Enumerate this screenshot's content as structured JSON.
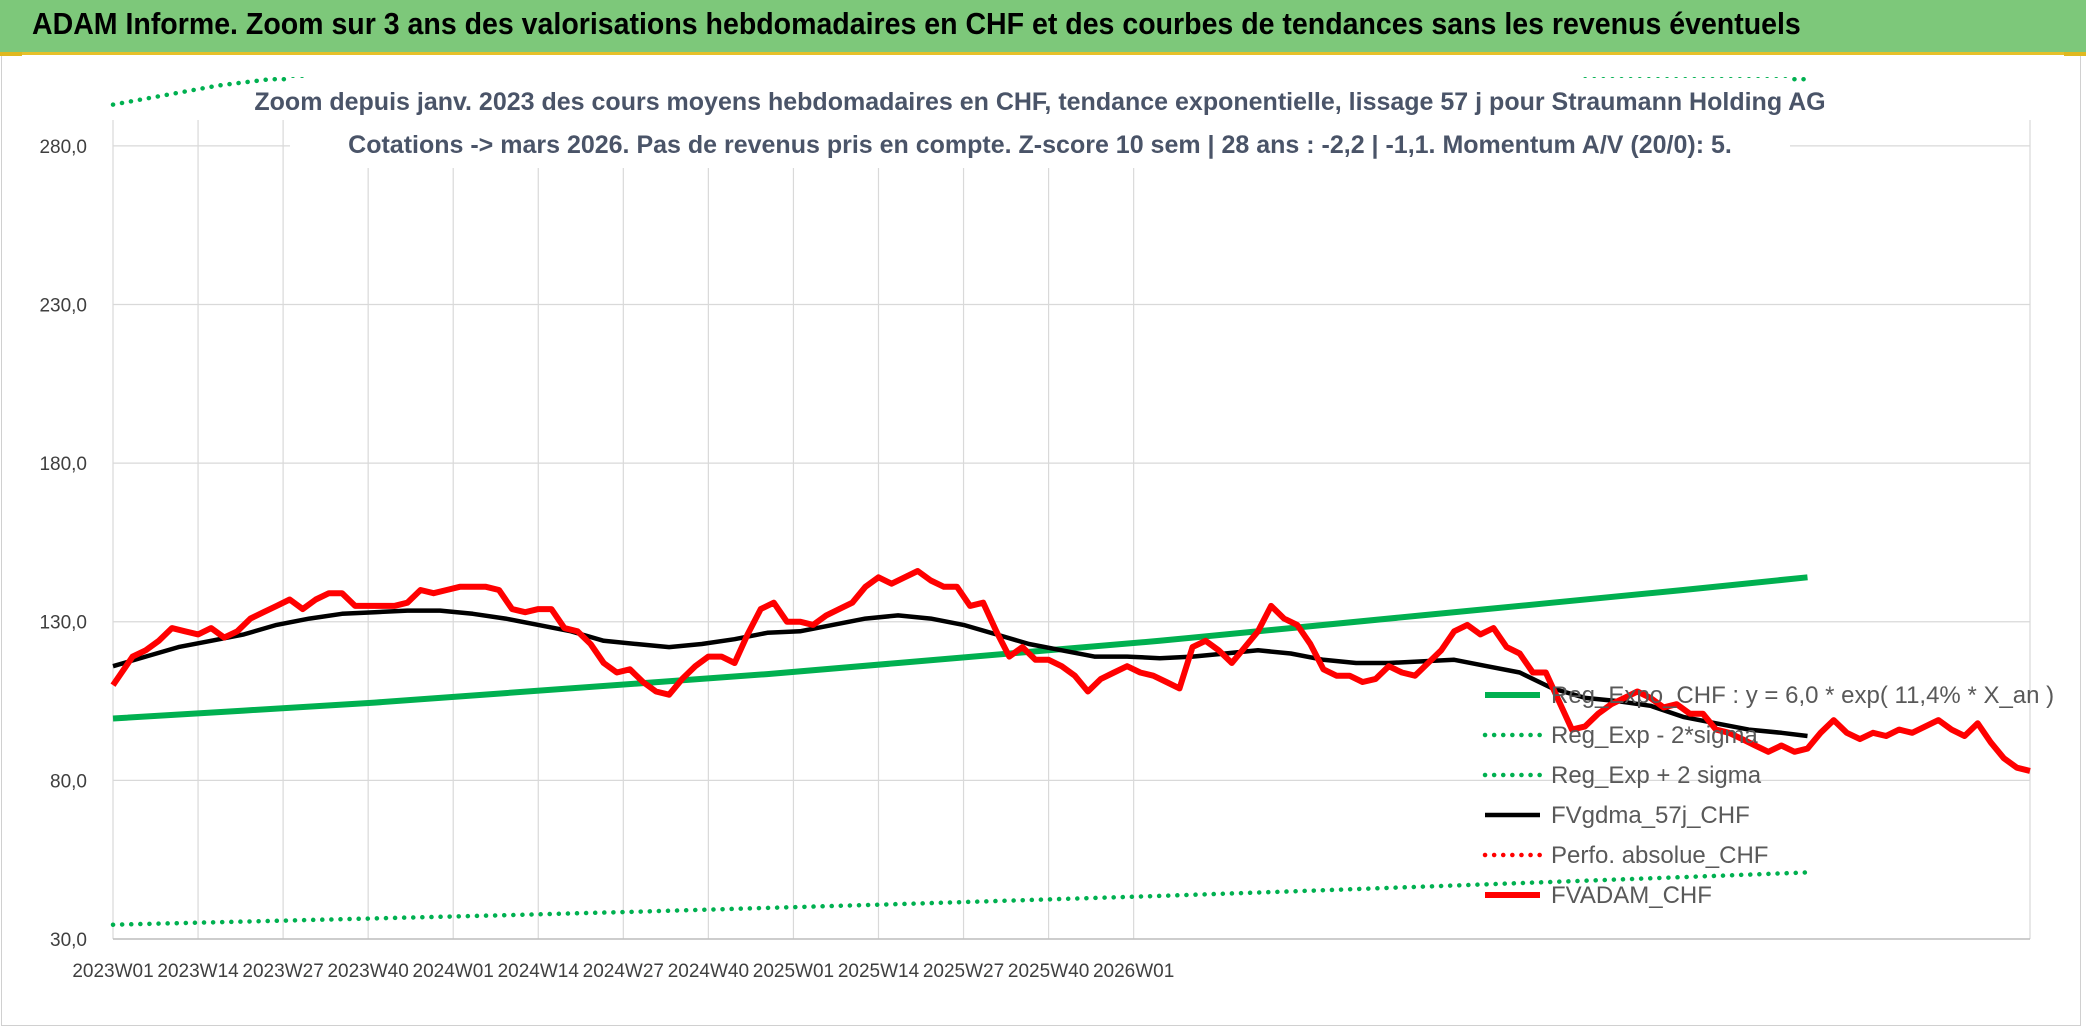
{
  "page": {
    "banner_title": "ADAM Informe. Zoom sur 3 ans des valorisations hebdomadaires en CHF et des courbes de tendances sans les revenus éventuels"
  },
  "colors": {
    "banner_bg": "#7dc87a",
    "trend_green": "#00b050",
    "price_red": "#ff0000",
    "gdma_black": "#000000"
  },
  "chart_data": {
    "type": "line",
    "title": "Zoom depuis janv. 2023 des cours moyens hebdomadaires en CHF, tendance exponentielle, lissage 57 j pour Straumann Holding AG",
    "subtitle": "Cotations -> mars 2026. Pas de revenus pris en compte. Z-score 10 sem | 28 ans : -2,2 | -1,1. Momentum A/V (20/0): 5.",
    "xlabel": "",
    "ylabel": "",
    "x_range": [
      "2023W01",
      "2026W12"
    ],
    "ylim": [
      30,
      285
    ],
    "y_ticks": [
      "30,0",
      "80,0",
      "130,0",
      "180,0",
      "230,0",
      "280,0"
    ],
    "x_ticks": [
      "2023W01",
      "2023W14",
      "2023W27",
      "2023W40",
      "2024W01",
      "2024W14",
      "2024W27",
      "2024W40",
      "2025W01",
      "2025W14",
      "2025W27",
      "2025W40",
      "2026W01"
    ],
    "grid": true,
    "legend_position": "right",
    "series": [
      {
        "name": "Reg_Expo_CHF : y = 6,0 * exp( 11,4% *  X_an )",
        "style": "solid-thick",
        "color": "#00b050",
        "points": [
          [
            0,
            99.5
          ],
          [
            20,
            102.0
          ],
          [
            40,
            104.5
          ],
          [
            60,
            107.5
          ],
          [
            80,
            110.5
          ],
          [
            100,
            113.5
          ],
          [
            120,
            117.0
          ],
          [
            140,
            120.5
          ],
          [
            160,
            124.0
          ],
          [
            180,
            128.0
          ],
          [
            200,
            132.0
          ],
          [
            220,
            136.0
          ],
          [
            240,
            140.0
          ],
          [
            259,
            144.0
          ]
        ]
      },
      {
        "name": "Reg_Exp - 2*sigma",
        "style": "dotted",
        "color": "#00b050",
        "points": [
          [
            0,
            34.5
          ],
          [
            20,
            35.5
          ],
          [
            40,
            36.5
          ],
          [
            60,
            37.5
          ],
          [
            80,
            38.6
          ],
          [
            100,
            39.8
          ],
          [
            120,
            41.0
          ],
          [
            140,
            42.3
          ],
          [
            160,
            43.6
          ],
          [
            180,
            45.0
          ],
          [
            200,
            46.5
          ],
          [
            220,
            48.0
          ],
          [
            240,
            49.5
          ],
          [
            259,
            51.0
          ]
        ]
      },
      {
        "name": "Reg_Exp + 2 sigma",
        "style": "dotted",
        "color": "#00b050",
        "points": [
          [
            0,
            293
          ],
          [
            8,
            296
          ],
          [
            16,
            299
          ],
          [
            24,
            301
          ],
          [
            30,
            301
          ]
        ],
        "points_right": [
          [
            225,
            301
          ],
          [
            259,
            301
          ]
        ]
      },
      {
        "name": "FVgdma_57j_CHF",
        "style": "solid",
        "color": "#000000",
        "points": [
          [
            0,
            116
          ],
          [
            5,
            119
          ],
          [
            10,
            122
          ],
          [
            15,
            124
          ],
          [
            20,
            126
          ],
          [
            25,
            129
          ],
          [
            30,
            131
          ],
          [
            35,
            132.5
          ],
          [
            40,
            133
          ],
          [
            45,
            133.5
          ],
          [
            50,
            133.5
          ],
          [
            55,
            132.5
          ],
          [
            60,
            131
          ],
          [
            65,
            129
          ],
          [
            70,
            127
          ],
          [
            75,
            124
          ],
          [
            80,
            123
          ],
          [
            85,
            122
          ],
          [
            90,
            123
          ],
          [
            95,
            124.5
          ],
          [
            100,
            126.5
          ],
          [
            105,
            127
          ],
          [
            110,
            129
          ],
          [
            115,
            131
          ],
          [
            120,
            132
          ],
          [
            125,
            131
          ],
          [
            130,
            129
          ],
          [
            135,
            126
          ],
          [
            140,
            123
          ],
          [
            145,
            121
          ],
          [
            150,
            119
          ],
          [
            155,
            119
          ],
          [
            160,
            118.5
          ],
          [
            165,
            119
          ],
          [
            170,
            120
          ],
          [
            175,
            121
          ],
          [
            180,
            120
          ],
          [
            185,
            118
          ],
          [
            190,
            117
          ],
          [
            195,
            117
          ],
          [
            200,
            117.5
          ],
          [
            205,
            118
          ],
          [
            210,
            116
          ],
          [
            215,
            114
          ],
          [
            220,
            109
          ],
          [
            225,
            106
          ],
          [
            230,
            105
          ],
          [
            235,
            103.5
          ],
          [
            240,
            100
          ],
          [
            245,
            98
          ],
          [
            250,
            96
          ],
          [
            255,
            95
          ],
          [
            259,
            94
          ]
        ]
      },
      {
        "name": "Perfo. absolue_CHF",
        "style": "dotted",
        "color": "#ff0000",
        "points": []
      },
      {
        "name": "FVADAM_CHF",
        "style": "solid-thick",
        "color": "#ff0000",
        "points": [
          [
            0,
            110
          ],
          [
            3,
            119
          ],
          [
            5,
            121
          ],
          [
            7,
            124
          ],
          [
            9,
            128
          ],
          [
            11,
            127
          ],
          [
            13,
            126
          ],
          [
            15,
            128
          ],
          [
            17,
            125
          ],
          [
            19,
            127
          ],
          [
            21,
            131
          ],
          [
            23,
            133
          ],
          [
            25,
            135
          ],
          [
            27,
            137
          ],
          [
            29,
            134
          ],
          [
            31,
            137
          ],
          [
            33,
            139
          ],
          [
            35,
            139
          ],
          [
            37,
            135
          ],
          [
            39,
            135
          ],
          [
            41,
            135
          ],
          [
            43,
            135
          ],
          [
            45,
            136
          ],
          [
            47,
            140
          ],
          [
            49,
            139
          ],
          [
            51,
            140
          ],
          [
            53,
            141
          ],
          [
            55,
            141
          ],
          [
            57,
            141
          ],
          [
            59,
            140
          ],
          [
            61,
            134
          ],
          [
            63,
            133
          ],
          [
            65,
            134
          ],
          [
            67,
            134
          ],
          [
            69,
            128
          ],
          [
            71,
            127
          ],
          [
            73,
            123
          ],
          [
            75,
            117
          ],
          [
            77,
            114
          ],
          [
            79,
            115
          ],
          [
            81,
            111
          ],
          [
            83,
            108
          ],
          [
            85,
            107
          ],
          [
            87,
            112
          ],
          [
            89,
            116
          ],
          [
            91,
            119
          ],
          [
            93,
            119
          ],
          [
            95,
            117
          ],
          [
            97,
            126
          ],
          [
            99,
            134
          ],
          [
            101,
            136
          ],
          [
            103,
            130
          ],
          [
            105,
            130
          ],
          [
            107,
            129
          ],
          [
            109,
            132
          ],
          [
            111,
            134
          ],
          [
            113,
            136
          ],
          [
            115,
            141
          ],
          [
            117,
            144
          ],
          [
            119,
            142
          ],
          [
            121,
            144
          ],
          [
            123,
            146
          ],
          [
            125,
            143
          ],
          [
            127,
            141
          ],
          [
            129,
            141
          ],
          [
            131,
            135
          ],
          [
            133,
            136
          ],
          [
            135,
            127
          ],
          [
            137,
            119
          ],
          [
            139,
            122
          ],
          [
            141,
            118
          ],
          [
            143,
            118
          ],
          [
            145,
            116
          ],
          [
            147,
            113
          ],
          [
            149,
            108
          ],
          [
            151,
            112
          ],
          [
            153,
            114
          ],
          [
            155,
            116
          ],
          [
            157,
            114
          ],
          [
            159,
            113
          ],
          [
            161,
            111
          ],
          [
            163,
            109
          ],
          [
            165,
            122
          ],
          [
            167,
            124
          ],
          [
            169,
            121
          ],
          [
            171,
            117
          ],
          [
            173,
            122
          ],
          [
            175,
            127
          ],
          [
            177,
            135
          ],
          [
            179,
            131
          ],
          [
            181,
            129
          ],
          [
            183,
            123
          ],
          [
            185,
            115
          ],
          [
            187,
            113
          ],
          [
            189,
            113
          ],
          [
            191,
            111
          ],
          [
            193,
            112
          ],
          [
            195,
            116
          ],
          [
            197,
            114
          ],
          [
            199,
            113
          ],
          [
            201,
            117
          ],
          [
            203,
            121
          ],
          [
            205,
            127
          ],
          [
            207,
            129
          ],
          [
            209,
            126
          ],
          [
            211,
            128
          ],
          [
            213,
            122
          ],
          [
            215,
            120
          ],
          [
            217,
            114
          ],
          [
            219,
            114
          ],
          [
            221,
            105
          ],
          [
            223,
            96
          ],
          [
            225,
            97
          ],
          [
            227,
            101
          ],
          [
            229,
            104
          ],
          [
            231,
            106
          ],
          [
            233,
            108
          ],
          [
            235,
            106
          ],
          [
            237,
            103
          ],
          [
            239,
            104
          ],
          [
            241,
            101
          ],
          [
            243,
            101
          ],
          [
            245,
            96
          ],
          [
            247,
            95
          ],
          [
            249,
            93
          ],
          [
            251,
            91
          ],
          [
            253,
            89
          ],
          [
            255,
            91
          ],
          [
            257,
            89
          ],
          [
            259,
            90
          ],
          [
            261,
            95
          ],
          [
            263,
            99
          ],
          [
            265,
            95
          ],
          [
            267,
            93
          ],
          [
            269,
            95
          ],
          [
            271,
            94
          ],
          [
            273,
            96
          ],
          [
            275,
            95
          ],
          [
            277,
            97
          ],
          [
            279,
            99
          ],
          [
            281,
            96
          ],
          [
            283,
            94
          ],
          [
            285,
            98
          ],
          [
            287,
            92
          ],
          [
            289,
            87
          ],
          [
            291,
            84
          ],
          [
            293,
            83
          ]
        ]
      }
    ],
    "legend": [
      "Reg_Expo_CHF : y = 6,0 * exp( 11,4% *  X_an )",
      "Reg_Exp - 2*sigma",
      "Reg_Exp + 2 sigma",
      "FVgdma_57j_CHF",
      "Perfo. absolue_CHF",
      "FVADAM_CHF"
    ]
  }
}
